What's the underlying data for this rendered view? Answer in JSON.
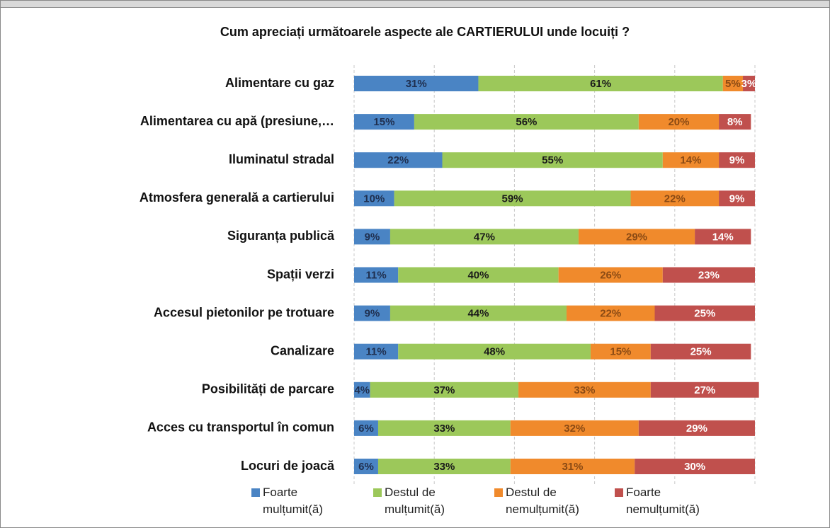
{
  "chart_data": {
    "type": "stacked-bar-horizontal",
    "title": "Cum apreciați următoarele aspecte ale CARTIERULUI unde locuiți ?",
    "categories": [
      "Alimentare cu gaz",
      "Alimentarea cu apă (presiune,…",
      "Iluminatul stradal",
      "Atmosfera generală a cartierului",
      "Siguranța publică",
      "Spații verzi",
      "Accesul pietonilor pe trotuare",
      "Canalizare",
      "Posibilități de parcare",
      "Acces cu transportul în comun",
      "Locuri de joacă"
    ],
    "xlim": [
      0,
      100
    ],
    "xticks": [
      0,
      20,
      40,
      60,
      80,
      100
    ],
    "grid": true,
    "series": [
      {
        "name": "Foarte mulțumit(ă)",
        "color": "#4a84c4",
        "label_color": "#1f2f4f",
        "values": [
          31,
          15,
          22,
          10,
          9,
          11,
          9,
          11,
          4,
          6,
          6
        ],
        "value_labels": [
          "31%",
          "15%",
          "22%",
          "10%",
          "9%",
          "11%",
          "9%",
          "11%",
          "4%",
          "6%",
          "6%"
        ]
      },
      {
        "name": "Destul de mulțumit(ă)",
        "color": "#9cc85a",
        "label_color": "#1a1a1a",
        "values": [
          61,
          56,
          55,
          59,
          47,
          40,
          44,
          48,
          37,
          33,
          33
        ],
        "value_labels": [
          "61%",
          "56%",
          "55%",
          "59%",
          "47%",
          "40%",
          "44%",
          "48%",
          "37%",
          "33%",
          "33%"
        ]
      },
      {
        "name": "Destul de nemulțumit(ă)",
        "color": "#f08a2c",
        "label_color": "#8a4a14",
        "values": [
          5,
          20,
          14,
          22,
          29,
          26,
          22,
          15,
          33,
          32,
          31
        ],
        "value_labels": [
          "5%",
          "20%",
          "14%",
          "22%",
          "29%",
          "26%",
          "22%",
          "15%",
          "33%",
          "32%",
          "31%"
        ]
      },
      {
        "name": "Foarte nemulțumit(ă)",
        "color": "#c0504d",
        "label_color": "#ffffff",
        "values": [
          3,
          8,
          9,
          9,
          14,
          23,
          25,
          25,
          27,
          29,
          30
        ],
        "value_labels": [
          "3%",
          "8%",
          "9%",
          "9%",
          "14%",
          "23%",
          "25%",
          "25%",
          "27%",
          "29%",
          "30%"
        ]
      }
    ]
  }
}
